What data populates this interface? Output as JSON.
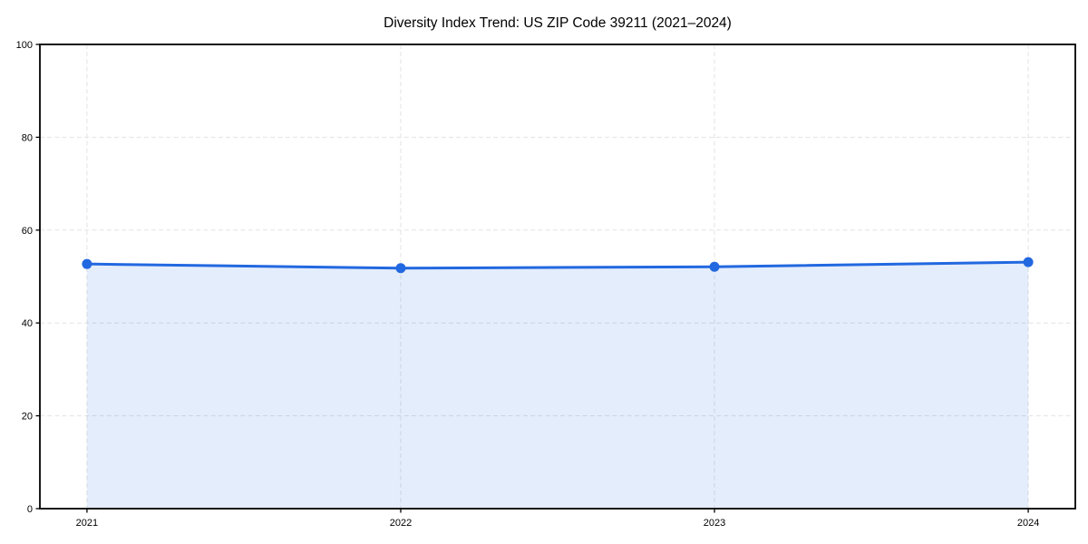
{
  "chart_data": {
    "type": "area",
    "title": "Diversity Index Trend: US ZIP Code 39211 (2021–2024)",
    "categories": [
      "2021",
      "2022",
      "2023",
      "2024"
    ],
    "values": [
      52.7,
      51.8,
      52.1,
      53.1
    ],
    "xlabel": "",
    "ylabel": "",
    "ylim": [
      0,
      100
    ],
    "yticks": [
      0,
      20,
      40,
      60,
      80,
      100
    ],
    "grid": {
      "horizontal": true,
      "vertical": true,
      "style": "dashed"
    },
    "legend_position": "none",
    "colors": {
      "line": "#2268e0",
      "marker": "#2268e0",
      "fill": "#2268e0",
      "fill_opacity": 0.12,
      "grid": "#e2e2e2",
      "axis": "#000000",
      "background": "#ffffff"
    }
  }
}
